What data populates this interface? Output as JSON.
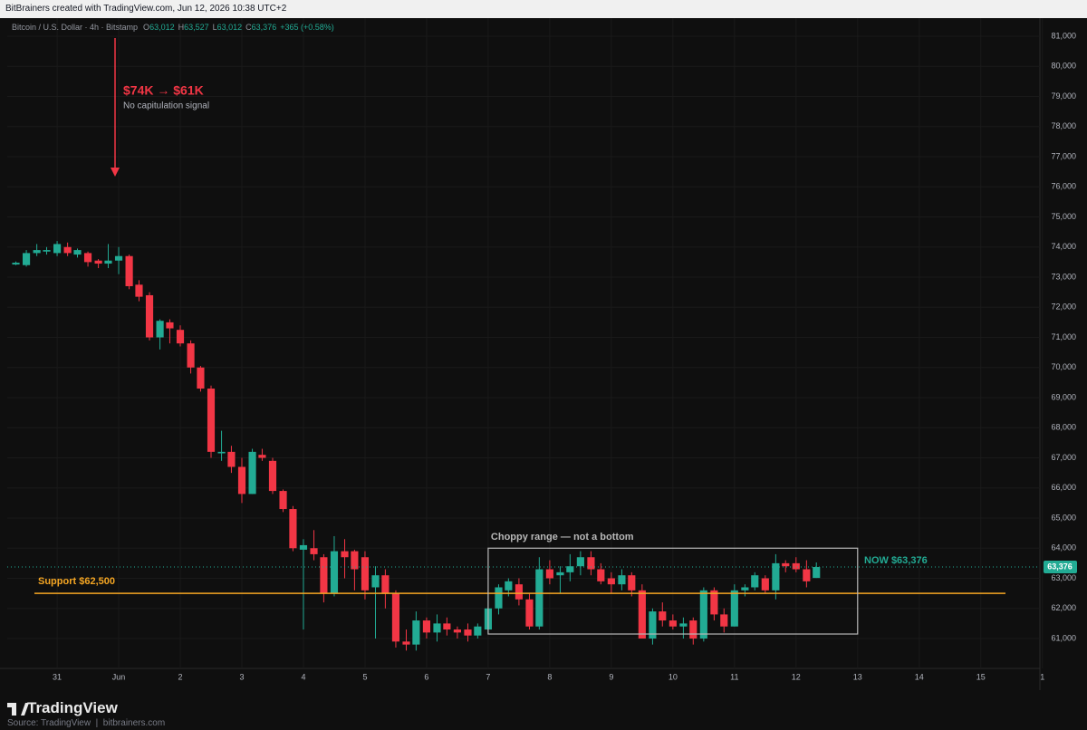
{
  "header": {
    "credit": "BitBrainers created with TradingView.com, Jun 12, 2026 10:38 UTC+2",
    "symbol": "Bitcoin / U.S. Dollar · 4h · Bitstamp",
    "ohlc": [
      {
        "label": "O",
        "value": "63,012"
      },
      {
        "label": "H",
        "value": "63,527"
      },
      {
        "label": "L",
        "value": "63,012"
      },
      {
        "label": "C",
        "value": "63,376"
      }
    ],
    "change": "+365 (+0.58%)"
  },
  "chart_data": {
    "type": "candlestick",
    "x": [
      -0.67,
      -0.5,
      -0.33,
      -0.17,
      0,
      0.17,
      0.33,
      0.5,
      0.67,
      0.83,
      1,
      1.17,
      1.33,
      1.5,
      1.67,
      1.83,
      2,
      2.17,
      2.33,
      2.5,
      2.67,
      2.83,
      3,
      3.17,
      3.33,
      3.5,
      3.67,
      3.83,
      4,
      4.17,
      4.33,
      4.5,
      4.67,
      4.83,
      5,
      5.17,
      5.33,
      5.5,
      5.67,
      5.83,
      6,
      6.17,
      6.33,
      6.5,
      6.67,
      6.83,
      7,
      7.17,
      7.33,
      7.5,
      7.67,
      7.83,
      8,
      8.17,
      8.33,
      8.5,
      8.67,
      8.83,
      9,
      9.17,
      9.33,
      9.5,
      9.67,
      9.83,
      10,
      10.17,
      10.33,
      10.5,
      10.67,
      10.83,
      11,
      11.17,
      11.33,
      11.5,
      11.67,
      11.83,
      12,
      12.17,
      12.33
    ],
    "open": [
      73420,
      73400,
      73800,
      73850,
      73800,
      74000,
      73750,
      73800,
      73550,
      73450,
      73550,
      73700,
      72750,
      72400,
      71000,
      71500,
      71250,
      70800,
      70000,
      69300,
      67150,
      67200,
      66700,
      65800,
      67100,
      66900,
      65900,
      65300,
      63950,
      64000,
      63700,
      62500,
      63900,
      63900,
      63700,
      62700,
      63100,
      62500,
      60900,
      60800,
      61600,
      61200,
      61500,
      61300,
      61300,
      61100,
      61300,
      62000,
      62600,
      62800,
      62300,
      61400,
      63300,
      63100,
      63200,
      63400,
      63700,
      63300,
      63000,
      62800,
      63100,
      62600,
      61000,
      61900,
      61600,
      61400,
      61600,
      61000,
      62600,
      61800,
      61400,
      62600,
      62700,
      63000,
      62600,
      63500,
      63500,
      63300,
      63012
    ],
    "high": [
      73520,
      73900,
      74100,
      74000,
      74200,
      74150,
      73950,
      73850,
      73600,
      74100,
      74000,
      73750,
      72900,
      72500,
      71600,
      71600,
      71400,
      70900,
      70050,
      69400,
      67900,
      67400,
      67000,
      67300,
      67300,
      67000,
      65950,
      65400,
      64300,
      64600,
      63800,
      64400,
      64300,
      63950,
      63900,
      63400,
      63300,
      62600,
      61300,
      61900,
      61700,
      61800,
      61700,
      61400,
      61500,
      61500,
      62600,
      62800,
      63000,
      63000,
      62500,
      63700,
      63600,
      63400,
      63800,
      63900,
      63900,
      63500,
      63200,
      63300,
      63200,
      62800,
      62000,
      62200,
      61800,
      61700,
      61700,
      62700,
      62700,
      62000,
      62800,
      62800,
      63200,
      63100,
      63800,
      63600,
      63700,
      63600,
      63527
    ],
    "low": [
      73400,
      73350,
      73700,
      73750,
      73700,
      73700,
      73650,
      73350,
      73300,
      73300,
      73100,
      72600,
      72200,
      70900,
      70600,
      70800,
      70700,
      69800,
      69200,
      67000,
      66900,
      66500,
      65500,
      65800,
      66900,
      65800,
      65200,
      63900,
      61300,
      63600,
      62200,
      62400,
      63000,
      62600,
      62300,
      61000,
      62000,
      60700,
      60600,
      60600,
      61000,
      60900,
      61100,
      61000,
      60900,
      61000,
      61200,
      61800,
      62400,
      62100,
      61300,
      61300,
      62800,
      62500,
      62900,
      63100,
      63100,
      62800,
      62500,
      62600,
      62400,
      61000,
      60800,
      61400,
      61300,
      61000,
      60800,
      60900,
      61600,
      61200,
      61400,
      62400,
      62600,
      62500,
      62300,
      63200,
      63200,
      62700,
      63012
    ],
    "close": [
      73480,
      73800,
      73900,
      73900,
      74100,
      73800,
      73900,
      73500,
      73450,
      73550,
      73700,
      72700,
      72350,
      71000,
      71550,
      71300,
      70800,
      70000,
      69300,
      67200,
      67200,
      66700,
      65800,
      67200,
      67000,
      65900,
      65300,
      64000,
      64100,
      63800,
      62500,
      63900,
      63700,
      63300,
      62600,
      63100,
      62500,
      60900,
      60800,
      61600,
      61200,
      61500,
      61300,
      61200,
      61100,
      61400,
      62000,
      62700,
      62900,
      62300,
      61400,
      63300,
      63000,
      63200,
      63400,
      63700,
      63300,
      62900,
      62800,
      63100,
      62600,
      61000,
      61900,
      61600,
      61400,
      61500,
      61000,
      62600,
      61800,
      61400,
      62600,
      62700,
      63100,
      62600,
      63500,
      63400,
      63300,
      62900,
      63376
    ],
    "up_color": "#22ab94",
    "down_color": "#f23645",
    "xlim": [
      -0.81,
      15.96
    ],
    "xticks": [
      {
        "value": 0,
        "label": "31"
      },
      {
        "value": 1,
        "label": "Jun"
      },
      2,
      3,
      4,
      5,
      6,
      7,
      8,
      9,
      10,
      11,
      12,
      13,
      14,
      15,
      {
        "value": 16,
        "label": "1"
      }
    ],
    "ylim": [
      59286,
      81602
    ],
    "yticks": [
      {
        "value": 81000,
        "label": "81,000"
      },
      {
        "value": 80000,
        "label": "80,000"
      },
      {
        "value": 79000,
        "label": "79,000"
      },
      {
        "value": 78000,
        "label": "78,000"
      },
      {
        "value": 77000,
        "label": "77,000"
      },
      {
        "value": 76000,
        "label": "76,000"
      },
      {
        "value": 75000,
        "label": "75,000"
      },
      {
        "value": 74000,
        "label": "74,000"
      },
      {
        "value": 73000,
        "label": "73,000"
      },
      {
        "value": 72000,
        "label": "72,000"
      },
      {
        "value": 71000,
        "label": "71,000"
      },
      {
        "value": 70000,
        "label": "70,000"
      },
      {
        "value": 69000,
        "label": "69,000"
      },
      {
        "value": 68000,
        "label": "68,000"
      },
      {
        "value": 67000,
        "label": "67,000"
      },
      {
        "value": 66000,
        "label": "66,000"
      },
      {
        "value": 65000,
        "label": "65,000"
      },
      {
        "value": 64000,
        "label": "64,000"
      },
      {
        "value": 63000,
        "label": "63,000"
      },
      {
        "value": 62000,
        "label": "62,000"
      },
      {
        "value": 61000,
        "label": "61,000"
      }
    ],
    "grid": true,
    "annotation": {
      "headline": "$74K → $61K",
      "note": "No capitulation signal",
      "color": "#f23645"
    },
    "support": {
      "label": "Support $62,500",
      "value": 62500,
      "color": "#f5a623"
    },
    "range_box": {
      "label": "Choppy range — not a bottom",
      "xrange": [
        7,
        13
      ],
      "yrange": [
        61150,
        64000
      ]
    },
    "last_price": {
      "value": 63376,
      "label": "63,376",
      "note": "NOW $63,376"
    }
  },
  "footer": {
    "brand": "TradingView",
    "source": "Source: TradingView  |  bitbrainers.com"
  }
}
